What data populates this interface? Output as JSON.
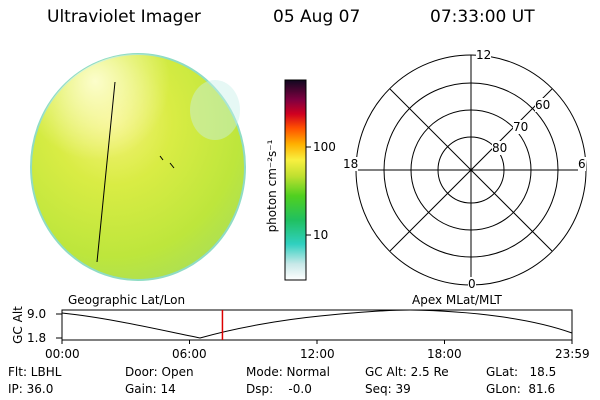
{
  "header": {
    "instrument": "Ultraviolet Imager",
    "date": "05 Aug 07",
    "time": "07:33:00 UT"
  },
  "colorbar": {
    "unit_label": "photon cm⁻²s⁻¹",
    "ticks": [
      "100",
      "10"
    ]
  },
  "polar": {
    "mlt_labels": {
      "top": "12",
      "left": "18",
      "right": "6",
      "bottom": "0"
    },
    "lat_labels": [
      "60",
      "70",
      "80"
    ]
  },
  "timeline": {
    "left_label": "Geographic Lat/Lon",
    "right_label": "Apex MLat/MLT",
    "axis_title": "GC Alt",
    "ymax": "9.0",
    "ymin": "1.8",
    "x_ticks": [
      "00:00",
      "06:00",
      "12:00",
      "18:00",
      "23:59"
    ],
    "current_time_fraction": 0.3146,
    "marker_color": "#dd0000"
  },
  "info": {
    "flt": "Flt: LBHL",
    "ip": "IP: 36.0",
    "door": "Door: Open",
    "gain": "Gain: 14",
    "mode": "Mode: Normal",
    "dsp": "Dsp:    -0.0",
    "gcalt": "GC Alt: 2.5 Re",
    "seq": "Seq: 39",
    "glat": "GLat:   18.5",
    "glon": "GLon:  81.6"
  }
}
